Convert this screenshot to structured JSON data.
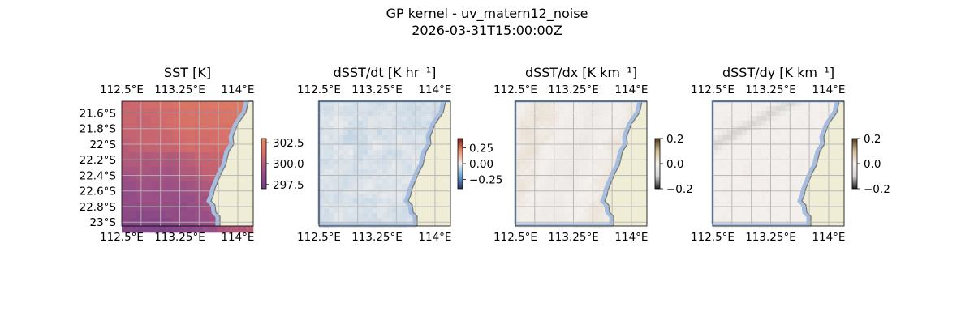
{
  "figure": {
    "title": "GP kernel - uv_matern12_noise",
    "subtitle": "2026-03-31T15:00:00Z"
  },
  "colors": {
    "land": "#efedd5",
    "ocean_edge": "#a4bde0",
    "coast": "#7a7a7a",
    "grid": "#b4b4b4",
    "sst_ramp": [
      "#6b3e86",
      "#9a4f86",
      "#d06a6c",
      "#e98a5e"
    ],
    "diverging": [
      "#2c2f6b",
      "#6aa5d4",
      "#f4f0ee",
      "#e9906a",
      "#7c1d1d"
    ],
    "brownbw": [
      "#1d1d1d",
      "#d6d4d2",
      "#f4f0ee",
      "#d3bd97",
      "#4e3511"
    ]
  },
  "chart_data": [
    {
      "type": "heatmap",
      "title": "SST [K]",
      "x_ticks": [
        "112.5°E",
        "113.25°E",
        "114°E"
      ],
      "x_tick_values": [
        112.5,
        113.25,
        114.0
      ],
      "y_ticks": [
        "21.6°S",
        "21.8°S",
        "22°S",
        "22.2°S",
        "22.4°S",
        "22.6°S",
        "22.8°S",
        "23°S"
      ],
      "y_tick_values": [
        -21.6,
        -21.8,
        -22.0,
        -22.2,
        -22.4,
        -22.6,
        -22.8,
        -23.0
      ],
      "xlim": [
        112.5,
        114.2
      ],
      "ylim": [
        -23.05,
        -21.45
      ],
      "colorbar": {
        "ticks": [
          "297.5",
          "300.0",
          "302.5"
        ],
        "tick_values": [
          297.5,
          300.0,
          302.5
        ],
        "range": [
          297.0,
          303.0
        ]
      }
    },
    {
      "type": "heatmap",
      "title": "dSST/dt [K hr⁻¹]",
      "x_ticks": [
        "112.5°E",
        "113.25°E",
        "114°E"
      ],
      "x_tick_values": [
        112.5,
        113.25,
        114.0
      ],
      "xlim": [
        112.5,
        114.2
      ],
      "ylim": [
        -23.05,
        -21.45
      ],
      "colorbar": {
        "ticks": [
          "0.25",
          "0.00",
          "−0.25"
        ],
        "tick_values": [
          0.25,
          0.0,
          -0.25
        ],
        "range": [
          -0.4,
          0.4
        ]
      }
    },
    {
      "type": "heatmap",
      "title": "dSST/dx [K km⁻¹]",
      "x_ticks": [
        "112.5°E",
        "113.25°E",
        "114°E"
      ],
      "x_tick_values": [
        112.5,
        113.25,
        114.0
      ],
      "xlim": [
        112.5,
        114.2
      ],
      "ylim": [
        -23.05,
        -21.45
      ],
      "colorbar": {
        "ticks": [
          "0.2",
          "0.0",
          "−0.2"
        ],
        "tick_values": [
          0.2,
          0.0,
          -0.2
        ],
        "range": [
          -0.2,
          0.2
        ]
      }
    },
    {
      "type": "heatmap",
      "title": "dSST/dy [K km⁻¹]",
      "x_ticks": [
        "112.5°E",
        "113.25°E",
        "114°E"
      ],
      "x_tick_values": [
        112.5,
        113.25,
        114.0
      ],
      "xlim": [
        112.5,
        114.2
      ],
      "ylim": [
        -23.05,
        -21.45
      ],
      "colorbar": {
        "ticks": [
          "0.2",
          "0.0",
          "−0.2"
        ],
        "tick_values": [
          0.2,
          0.0,
          -0.2
        ],
        "range": [
          -0.2,
          0.2
        ]
      }
    }
  ]
}
